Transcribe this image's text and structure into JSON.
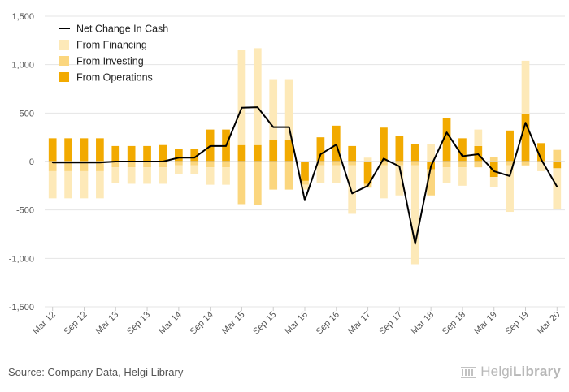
{
  "chart_data": {
    "type": "bar+line",
    "ylim": [
      -1500,
      1500
    ],
    "yticks": [
      -1500,
      -1000,
      -500,
      0,
      500,
      1000,
      1500
    ],
    "ytick_labels": [
      "-1,500",
      "-1,000",
      "-500",
      "0",
      "500",
      "1,000",
      "1,500"
    ],
    "grid": true,
    "legend_position": "top-left",
    "xtick_labels": [
      "Mar 12",
      "Sep 12",
      "Mar 13",
      "Sep 13",
      "Mar 14",
      "Sep 14",
      "Mar 15",
      "Sep 15",
      "Mar 16",
      "Sep 16",
      "Mar 17",
      "Sep 17",
      "Mar 18",
      "Sep 18",
      "Mar 19",
      "Sep 19",
      "Mar 20"
    ],
    "periods": 33,
    "series": [
      {
        "name": "Net Change In Cash",
        "kind": "line",
        "color": "#000000",
        "values": [
          -10,
          -10,
          -10,
          -10,
          0,
          0,
          0,
          0,
          40,
          40,
          160,
          160,
          555,
          560,
          355,
          355,
          -400,
          75,
          175,
          -330,
          -250,
          30,
          -50,
          -850,
          -50,
          300,
          55,
          75,
          -100,
          -150,
          400,
          20,
          -260
        ]
      },
      {
        "name": "From Financing",
        "kind": "bar",
        "color": "#fde9b8",
        "values": [
          -280,
          -280,
          -280,
          -280,
          -160,
          -170,
          -170,
          -170,
          -90,
          -90,
          -180,
          -180,
          980,
          1000,
          630,
          630,
          -50,
          -180,
          -180,
          -500,
          40,
          -340,
          -310,
          -1020,
          180,
          -160,
          -190,
          170,
          -100,
          -480,
          550,
          -100,
          -420
        ]
      },
      {
        "name": "From Investing",
        "kind": "bar",
        "color": "#fbd67e",
        "values": [
          -100,
          -100,
          -100,
          -100,
          -60,
          -60,
          -60,
          -60,
          -40,
          -40,
          -60,
          -60,
          -440,
          -450,
          -290,
          -290,
          -40,
          -40,
          -40,
          -40,
          -40,
          -40,
          -40,
          -40,
          -270,
          -60,
          -60,
          -60,
          50,
          -40,
          -40,
          0,
          120
        ]
      },
      {
        "name": "From Operations",
        "kind": "bar",
        "color": "#f2aa00",
        "values": [
          240,
          240,
          240,
          240,
          160,
          160,
          160,
          170,
          130,
          130,
          330,
          330,
          170,
          170,
          220,
          220,
          -200,
          250,
          370,
          160,
          -230,
          350,
          260,
          180,
          -80,
          450,
          240,
          160,
          -160,
          320,
          490,
          190,
          -70
        ]
      }
    ]
  },
  "footer": {
    "source": "Source: Company Data, Helgi Library",
    "brand_light": "Helgi",
    "brand_bold": "Library"
  }
}
